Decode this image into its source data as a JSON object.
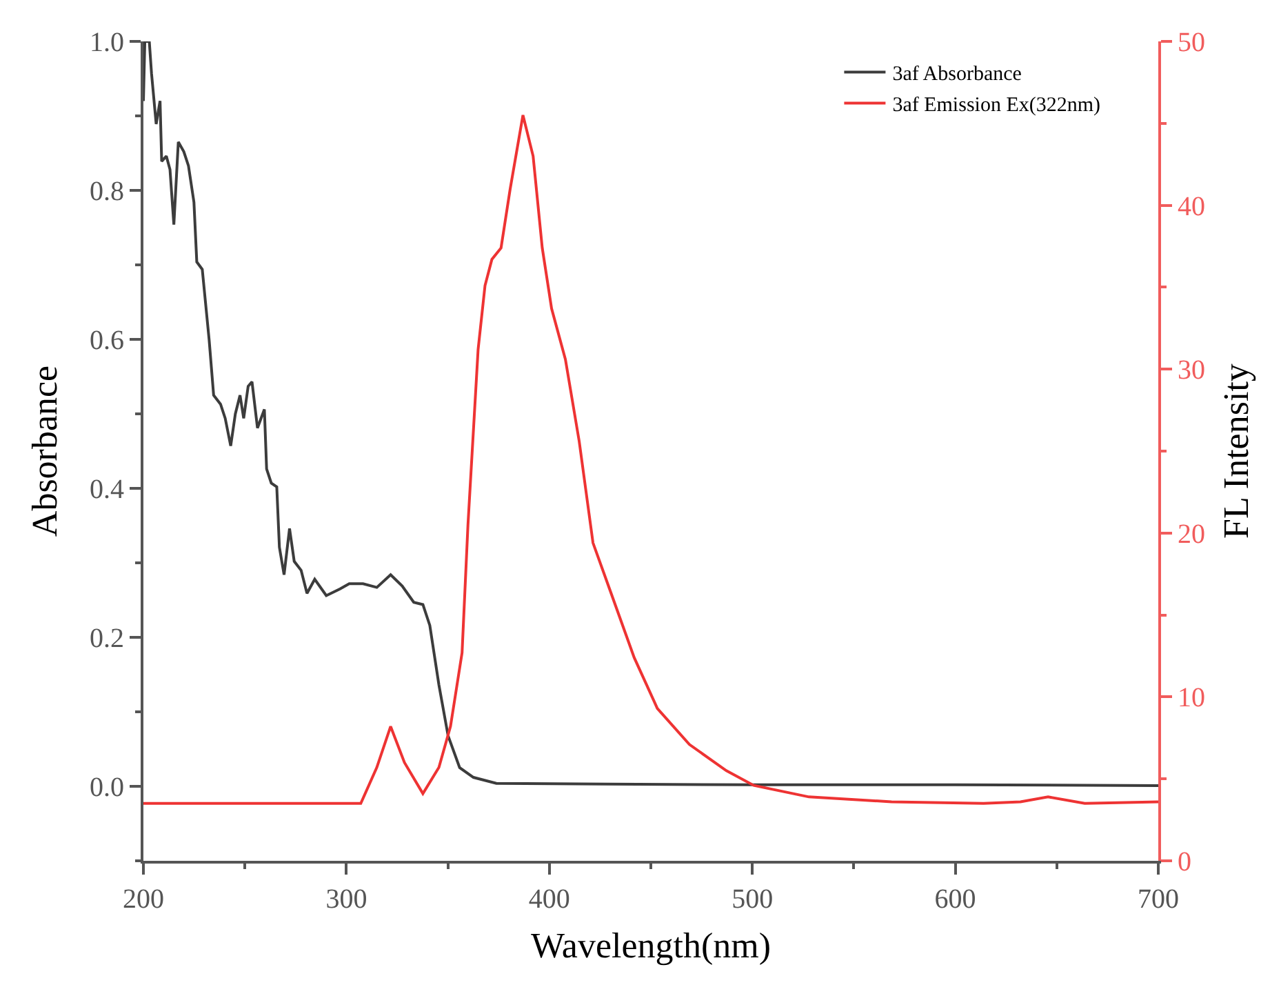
{
  "chart_data": {
    "type": "line",
    "xlabel": "Wavelength(nm)",
    "ylabel": "Absorbance",
    "y2label": "FL Intensity",
    "xlim": [
      200,
      700
    ],
    "xticks": [
      200,
      300,
      400,
      500,
      600,
      700
    ],
    "ylim": [
      -0.1,
      1.0
    ],
    "yticks": [
      {
        "value": 0,
        "label": "0.0"
      },
      0.2,
      0.4,
      0.6,
      0.8,
      {
        "value": 1,
        "label": "1.0"
      }
    ],
    "y2lim": [
      0,
      50
    ],
    "y2ticks": [
      0,
      10,
      20,
      30,
      40,
      50
    ],
    "legend": "top right",
    "series": [
      {
        "name": "3af Absorbance",
        "color": "#3c3c3c",
        "x": [
          200,
          200.7,
          202.9,
          204,
          206.3,
          208.2,
          209,
          211.3,
          213.1,
          215,
          217.2,
          219.9,
          222.2,
          224.9,
          226.3,
          229,
          232.4,
          234.6,
          238,
          240.3,
          243,
          245.3,
          247.6,
          249.4,
          251.6,
          253.5,
          256.2,
          259.6,
          260.7,
          263,
          265.7,
          267,
          269.3,
          272,
          274.3,
          277.7,
          280.6,
          284.4,
          290.1,
          296.9,
          301.4,
          308.2,
          315,
          321.8,
          327.5,
          333.2,
          337.7,
          341.1,
          345.6,
          350.1,
          355.8,
          362.6,
          373.9,
          428,
          500,
          600,
          700
        ],
        "values": [
          0.92,
          1.0,
          1.0,
          0.957,
          0.889,
          0.92,
          0.839,
          0.846,
          0.828,
          0.754,
          0.865,
          0.852,
          0.833,
          0.784,
          0.704,
          0.694,
          0.599,
          0.525,
          0.513,
          0.494,
          0.457,
          0.5,
          0.525,
          0.494,
          0.537,
          0.543,
          0.481,
          0.506,
          0.426,
          0.407,
          0.402,
          0.321,
          0.284,
          0.346,
          0.302,
          0.29,
          0.259,
          0.278,
          0.256,
          0.265,
          0.272,
          0.272,
          0.267,
          0.284,
          0.269,
          0.247,
          0.244,
          0.216,
          0.136,
          0.068,
          0.025,
          0.012,
          0.004,
          0.003,
          0.002,
          0.002,
          0.001
        ]
      },
      {
        "name": "3af Emission Ex(322nm)",
        "color": "#ee3333",
        "axis": "y2",
        "x": [
          200,
          250,
          300,
          307.1,
          315,
          321.8,
          328.6,
          337.7,
          345.6,
          351.3,
          357,
          359.9,
          364.9,
          368.3,
          371.7,
          376.2,
          380.7,
          387,
          392,
          396.5,
          401.1,
          407.9,
          414.7,
          421.5,
          430.5,
          441.8,
          453.2,
          469,
          487.2,
          500.7,
          527.9,
          568.6,
          613.9,
          632.1,
          645.7,
          663.8,
          700
        ],
        "values": [
          3.5,
          3.5,
          3.5,
          3.5,
          5.7,
          8.2,
          6.0,
          4.1,
          5.7,
          8.2,
          12.7,
          20.5,
          31.2,
          35.1,
          36.7,
          37.4,
          41.0,
          45.5,
          43.0,
          37.4,
          33.7,
          30.6,
          25.6,
          19.4,
          16.3,
          12.4,
          9.3,
          7.1,
          5.5,
          4.6,
          3.9,
          3.6,
          3.5,
          3.6,
          3.9,
          3.5,
          3.6
        ]
      }
    ]
  }
}
